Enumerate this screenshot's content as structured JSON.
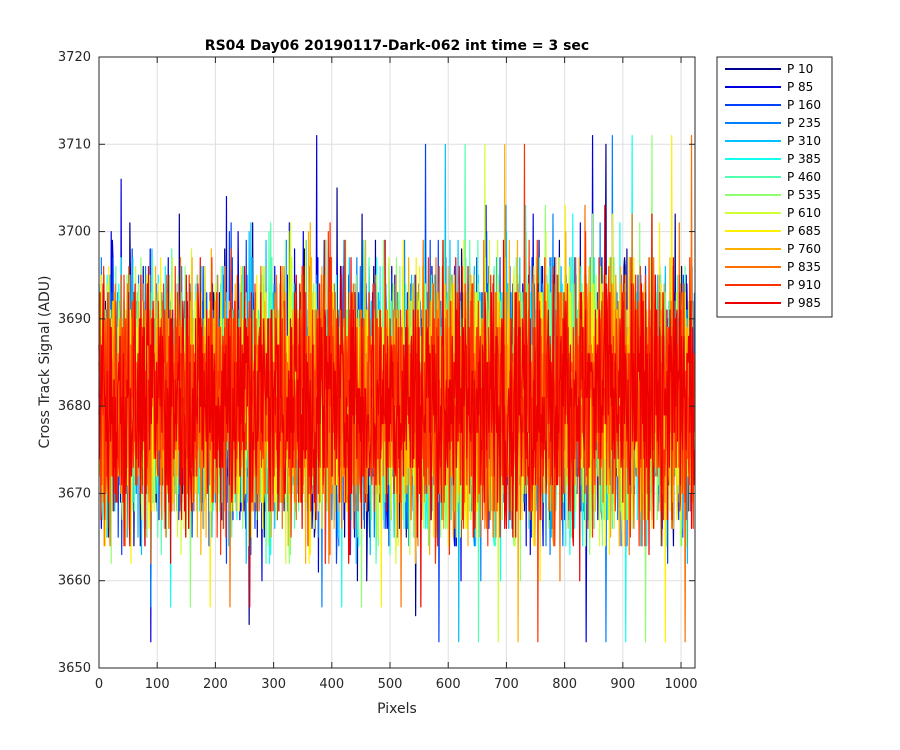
{
  "chart_data": {
    "type": "line",
    "title": "RS04 Day06 20190117-Dark-062 int time = 3 sec",
    "xlabel": "Pixels",
    "ylabel": "Cross Track Signal (ADU)",
    "xlim": [
      0,
      1024
    ],
    "ylim": [
      3650,
      3720
    ],
    "xticks": [
      0,
      100,
      200,
      300,
      400,
      500,
      600,
      700,
      800,
      900,
      1000
    ],
    "yticks": [
      3650,
      3660,
      3670,
      3680,
      3690,
      3700,
      3710,
      3720
    ],
    "grid": true,
    "legend_position": "outside-right",
    "noise": {
      "points_per_series": 1024,
      "mean": 3681,
      "min": 3653,
      "max": 3711
    },
    "series": [
      {
        "name": "P 10",
        "color": "#00008f"
      },
      {
        "name": "P 85",
        "color": "#0000df"
      },
      {
        "name": "P 160",
        "color": "#0040ff"
      },
      {
        "name": "P 235",
        "color": "#0080ff"
      },
      {
        "name": "P 310",
        "color": "#00bfff"
      },
      {
        "name": "P 385",
        "color": "#10ffef"
      },
      {
        "name": "P 460",
        "color": "#50ffaf"
      },
      {
        "name": "P 535",
        "color": "#8fff70"
      },
      {
        "name": "P 610",
        "color": "#cfff30"
      },
      {
        "name": "P 685",
        "color": "#ffef00"
      },
      {
        "name": "P 760",
        "color": "#ffaf00"
      },
      {
        "name": "P 835",
        "color": "#ff7000"
      },
      {
        "name": "P 910",
        "color": "#ff3000"
      },
      {
        "name": "P 985",
        "color": "#ef0000"
      }
    ]
  }
}
